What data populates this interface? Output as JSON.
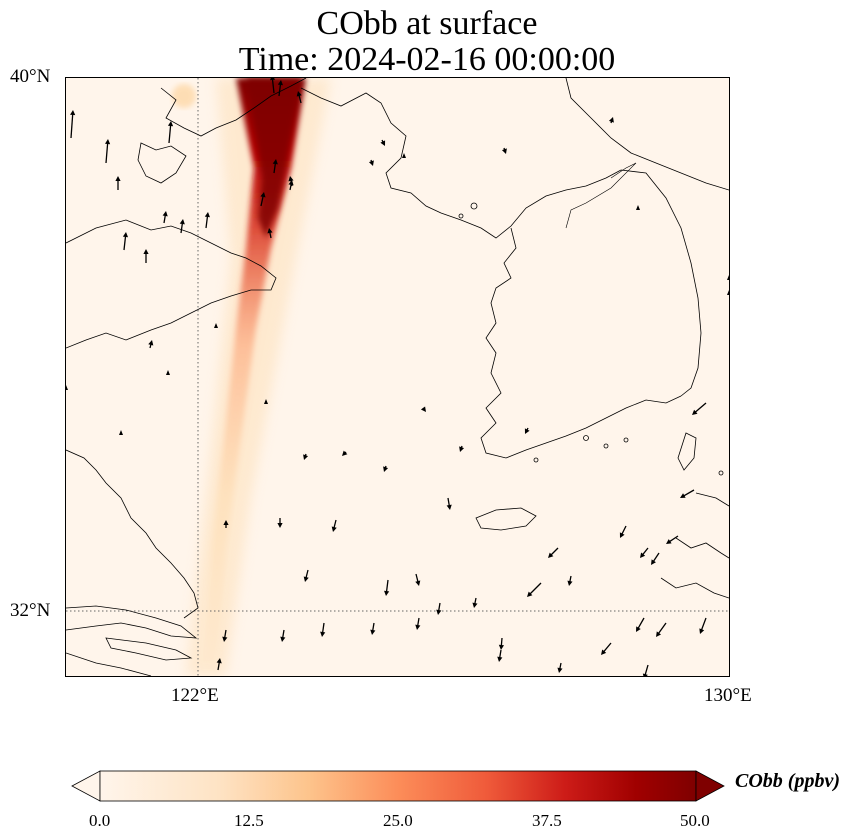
{
  "title": {
    "line1": "CObb at surface",
    "line2": "Time: 2024-02-16 00:00:00"
  },
  "map": {
    "lat_ticks": [
      "40°N",
      "32°N"
    ],
    "lon_ticks": [
      "122°E",
      "130°E"
    ],
    "extent": {
      "lon_min": 120.0,
      "lon_max": 130.0,
      "lat_min": 31.0,
      "lat_max": 40.0
    },
    "plume_lon_top": 123.2,
    "plume_lon_bottom": 122.3,
    "land_color": "#fff5eb",
    "arrow_color": "#000000",
    "gridline_style": "dotted"
  },
  "colorbar": {
    "label": "CObb (ppbv)",
    "ticks": [
      "0.0",
      "12.5",
      "25.0",
      "37.5",
      "50.0"
    ],
    "min": 0.0,
    "max": 50.0,
    "extend": "both",
    "colormap": [
      "#fff5eb",
      "#fdd49e",
      "#fc8d59",
      "#d7301f",
      "#b30000",
      "#7f0000"
    ]
  },
  "icons": {
    "wind_vector": "wind-arrow-icon"
  }
}
